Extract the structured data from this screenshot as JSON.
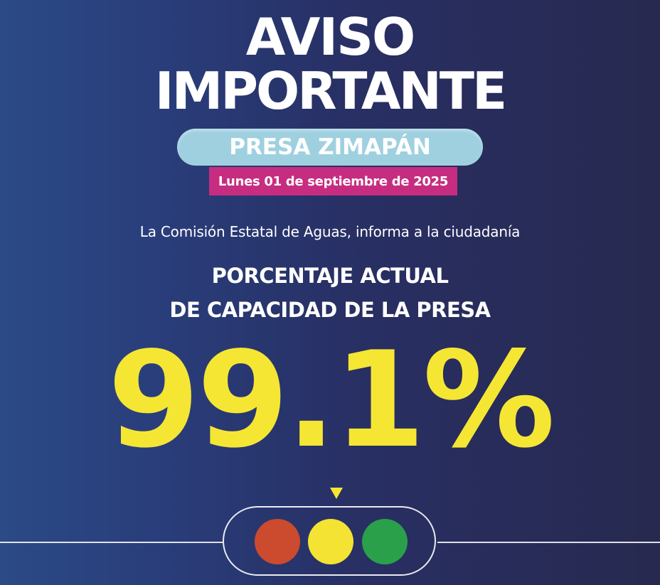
{
  "header": {
    "title_line1": "AVISO",
    "title_line2": "IMPORTANTE"
  },
  "location": {
    "name": "PRESA ZIMAPÁN"
  },
  "date": {
    "label": "Lunes 01 de septiembre de 2025"
  },
  "info": {
    "text": "La Comisión Estatal de Aguas, informa a la ciudadanía"
  },
  "capacity": {
    "label_line1": "PORCENTAJE ACTUAL",
    "label_line2": "DE CAPACIDAD DE LA PRESA",
    "value": "99.1%"
  },
  "traffic_light": {
    "active": "yellow",
    "lights": [
      {
        "name": "red",
        "color": "#cc4a2e"
      },
      {
        "name": "yellow",
        "color": "#f4e333"
      },
      {
        "name": "green",
        "color": "#2aa04a"
      }
    ]
  },
  "colors": {
    "accent_yellow": "#f5e634",
    "pill_blue": "#9fd0e0",
    "date_magenta": "#c62d80",
    "background_dark": "#27294f",
    "background_blue": "#2b4a86"
  }
}
